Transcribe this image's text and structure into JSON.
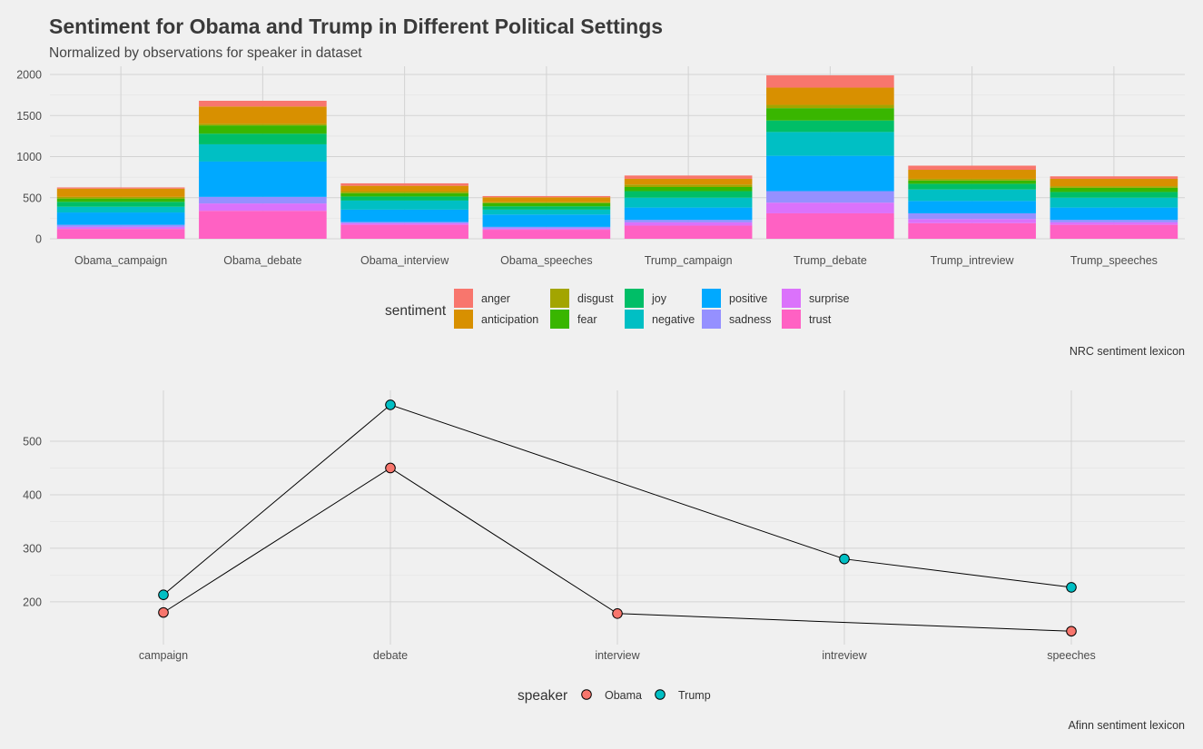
{
  "title": "Sentiment for Obama and Trump in Different Political Settings",
  "subtitle": "Normalized by observations for speaker in dataset",
  "chart_data": [
    {
      "type": "bar",
      "stacked": true,
      "categories": [
        "Obama_campaign",
        "Obama_debate",
        "Obama_interview",
        "Obama_speeches",
        "Trump_campaign",
        "Trump_debate",
        "Trump_intreview",
        "Trump_speeches"
      ],
      "ylim": [
        0,
        2100
      ],
      "yticks": [
        0,
        500,
        1000,
        1500,
        2000
      ],
      "grid": true,
      "legend_title": "sentiment",
      "legend_position": "bottom",
      "caption": "NRC sentiment lexicon",
      "series": [
        {
          "name": "trust",
          "color": "#FF61C3",
          "values": [
            120,
            340,
            170,
            110,
            160,
            310,
            190,
            170
          ]
        },
        {
          "name": "surprise",
          "color": "#DB72FB",
          "values": [
            25,
            90,
            20,
            15,
            40,
            130,
            50,
            30
          ]
        },
        {
          "name": "sadness",
          "color": "#9590FF",
          "values": [
            25,
            80,
            15,
            20,
            30,
            140,
            70,
            30
          ]
        },
        {
          "name": "positive",
          "color": "#00A9FF",
          "values": [
            150,
            430,
            150,
            150,
            150,
            430,
            150,
            150
          ]
        },
        {
          "name": "negative",
          "color": "#00BFC4",
          "values": [
            70,
            210,
            110,
            60,
            120,
            290,
            140,
            120
          ]
        },
        {
          "name": "joy",
          "color": "#00BE67",
          "values": [
            60,
            130,
            50,
            40,
            80,
            140,
            70,
            70
          ]
        },
        {
          "name": "fear",
          "color": "#39B600",
          "values": [
            40,
            100,
            40,
            40,
            50,
            150,
            40,
            50
          ]
        },
        {
          "name": "disgust",
          "color": "#A3A500",
          "values": [
            20,
            20,
            20,
            10,
            30,
            40,
            20,
            20
          ]
        },
        {
          "name": "anticipation",
          "color": "#D89000",
          "values": [
            100,
            210,
            70,
            60,
            70,
            210,
            110,
            90
          ]
        },
        {
          "name": "anger",
          "color": "#F8766D",
          "values": [
            15,
            70,
            30,
            15,
            40,
            150,
            50,
            30
          ]
        }
      ],
      "legend_order": [
        "anger",
        "anticipation",
        "disgust",
        "fear",
        "joy",
        "negative",
        "positive",
        "sadness",
        "surprise",
        "trust"
      ]
    },
    {
      "type": "line",
      "categories": [
        "campaign",
        "debate",
        "interview",
        "intreview",
        "speeches"
      ],
      "ylim": [
        120,
        595
      ],
      "yticks": [
        200,
        300,
        400,
        500
      ],
      "grid": true,
      "legend_title": "speaker",
      "legend_position": "bottom",
      "caption": "Afinn sentiment lexicon",
      "series": [
        {
          "name": "Obama",
          "color": "#F8766D",
          "points": [
            [
              "campaign",
              180
            ],
            [
              "debate",
              450
            ],
            [
              "interview",
              178
            ],
            [
              "speeches",
              145
            ]
          ]
        },
        {
          "name": "Trump",
          "color": "#00BFC4",
          "points": [
            [
              "campaign",
              213
            ],
            [
              "debate",
              568
            ],
            [
              "intreview",
              280
            ],
            [
              "speeches",
              227
            ]
          ]
        }
      ]
    }
  ]
}
